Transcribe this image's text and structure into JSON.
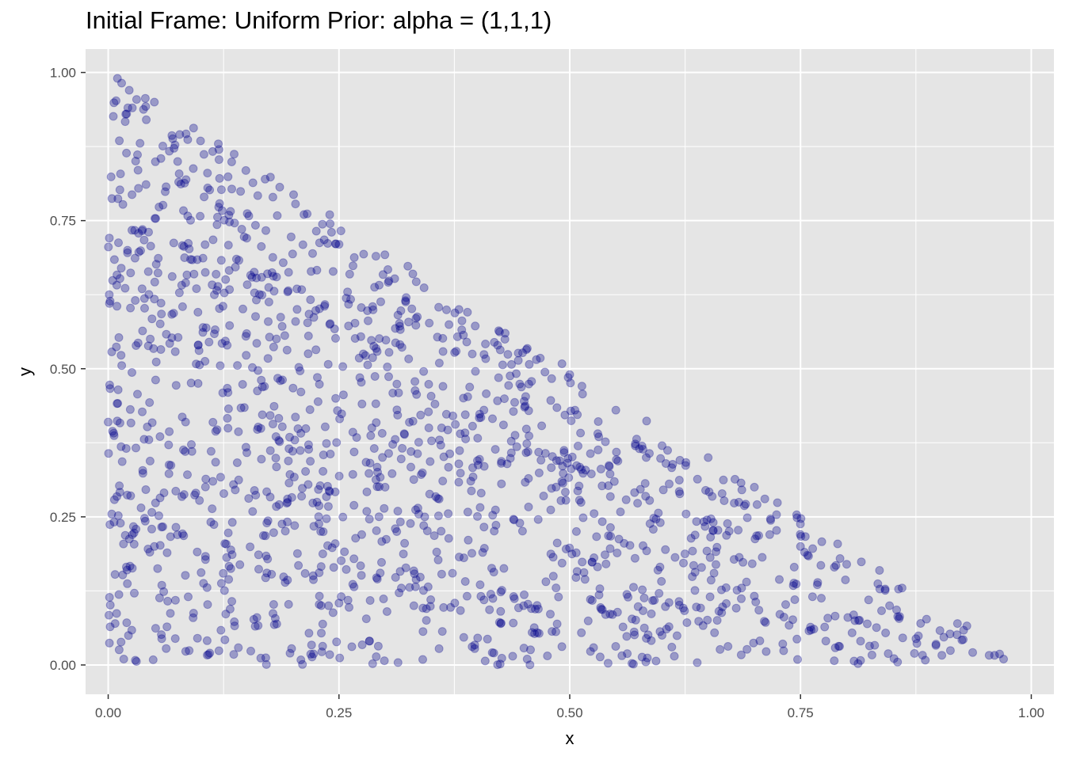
{
  "chart_data": {
    "type": "scatter",
    "title": "Initial Frame: Uniform Prior: alpha = (1,1,1)",
    "xlabel": "x",
    "ylabel": "y",
    "xlim": [
      -0.0245,
      1.0245
    ],
    "ylim": [
      -0.0495,
      1.0395
    ],
    "x_ticks": [
      0,
      0.25,
      0.5,
      0.75,
      1
    ],
    "x_tick_labels": [
      "0.00",
      "0.25",
      "0.50",
      "0.75",
      "1.00"
    ],
    "y_ticks": [
      0,
      0.25,
      0.5,
      0.75,
      1
    ],
    "y_tick_labels": [
      "0.00",
      "0.25",
      "0.50",
      "0.75",
      "1.00"
    ],
    "grid": true,
    "legend": "none",
    "point_color": "#00008b",
    "point_alpha": 0.33,
    "panel_background": "#e5e5e5",
    "grid_color": "#ffffff",
    "n_points": 1500,
    "points_sample": [
      [
        0.01,
        0.99
      ],
      [
        0.02,
        0.93
      ],
      [
        0.05,
        0.95
      ],
      [
        0.12,
        0.87
      ],
      [
        0.17,
        0.82
      ],
      [
        0.24,
        0.76
      ],
      [
        0.29,
        0.69
      ],
      [
        0.33,
        0.66
      ],
      [
        0.38,
        0.6
      ],
      [
        0.43,
        0.56
      ],
      [
        0.5,
        0.49
      ],
      [
        0.55,
        0.43
      ],
      [
        0.6,
        0.37
      ],
      [
        0.65,
        0.35
      ],
      [
        0.7,
        0.3
      ],
      [
        0.75,
        0.2
      ],
      [
        0.8,
        0.17
      ],
      [
        0.86,
        0.13
      ],
      [
        0.92,
        0.07
      ],
      [
        0.97,
        0.01
      ],
      [
        0.0,
        0.41
      ],
      [
        0.05,
        0.2
      ],
      [
        0.3,
        0.3
      ],
      [
        0.45,
        0.1
      ],
      [
        0.6,
        0.05
      ]
    ]
  }
}
